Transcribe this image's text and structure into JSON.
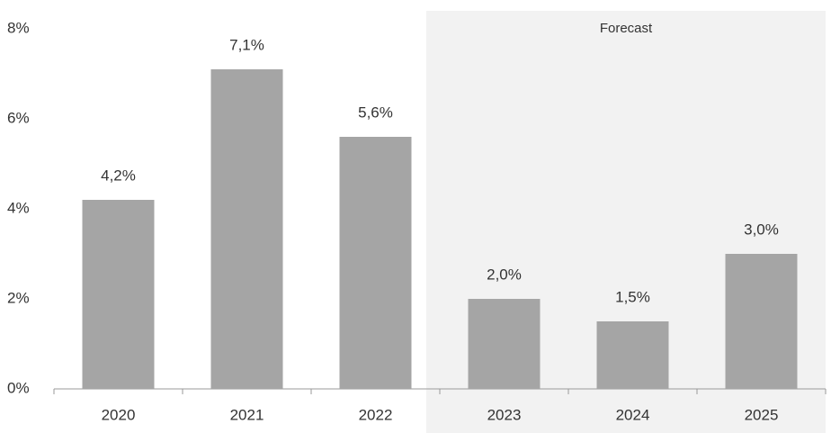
{
  "chart_data": {
    "type": "bar",
    "categories": [
      "2020",
      "2021",
      "2022",
      "2023",
      "2024",
      "2025"
    ],
    "values": [
      4.2,
      7.1,
      5.6,
      2.0,
      1.5,
      3.0
    ],
    "value_labels": [
      "4,2%",
      "7,1%",
      "5,6%",
      "2,0%",
      "1,5%",
      "3,0%"
    ],
    "color": "#a5a5a5",
    "ylim": [
      0,
      8
    ],
    "yticks": [
      {
        "value": 0,
        "label": "0%"
      },
      {
        "value": 2,
        "label": "2%"
      },
      {
        "value": 4,
        "label": "4%"
      },
      {
        "value": 6,
        "label": "6%"
      },
      {
        "value": 8,
        "label": "8%"
      }
    ],
    "grid": false,
    "shaded_region": {
      "text": "Forecast",
      "from": "2023",
      "to": "2025",
      "color": "#f2f2f2"
    }
  }
}
